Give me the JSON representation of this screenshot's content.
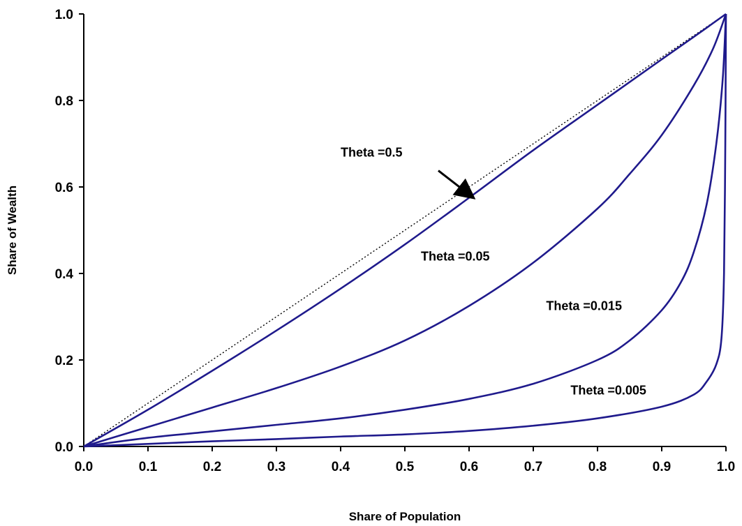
{
  "chart_data": {
    "type": "line",
    "title": "",
    "xlabel": "Share of Population",
    "ylabel": "Share of Wealth",
    "xlim": [
      0.0,
      1.0
    ],
    "ylim": [
      0.0,
      1.0
    ],
    "grid": false,
    "legend": "none",
    "x_ticks": [
      "0.0",
      "0.1",
      "0.2",
      "0.3",
      "0.4",
      "0.5",
      "0.6",
      "0.7",
      "0.8",
      "0.9",
      "1.0"
    ],
    "y_ticks": [
      "0.0",
      "0.2",
      "0.4",
      "0.6",
      "0.8",
      "1.0"
    ],
    "line_color": "#1f1a8c",
    "reference_line": {
      "style": "dotted",
      "x": [
        0.0,
        1.0
      ],
      "y": [
        0.0,
        1.0
      ],
      "color": "#000000"
    },
    "series": [
      {
        "theta": 0.5,
        "x": [
          0,
          0.1,
          0.2,
          0.3,
          0.4,
          0.5,
          0.6,
          0.7,
          0.8,
          0.9,
          0.95,
          1.0
        ],
        "y": [
          0,
          0.085,
          0.175,
          0.268,
          0.365,
          0.467,
          0.575,
          0.685,
          0.79,
          0.895,
          0.947,
          1.0
        ]
      },
      {
        "theta": 0.05,
        "x": [
          0,
          0.1,
          0.2,
          0.3,
          0.4,
          0.5,
          0.6,
          0.7,
          0.8,
          0.85,
          0.9,
          0.95,
          0.98,
          1.0
        ],
        "y": [
          0,
          0.045,
          0.09,
          0.135,
          0.185,
          0.245,
          0.325,
          0.425,
          0.55,
          0.63,
          0.72,
          0.835,
          0.92,
          1.0
        ]
      },
      {
        "theta": 0.015,
        "x": [
          0,
          0.1,
          0.2,
          0.3,
          0.4,
          0.5,
          0.6,
          0.7,
          0.8,
          0.85,
          0.9,
          0.93,
          0.95,
          0.97,
          0.985,
          0.995,
          1.0
        ],
        "y": [
          0,
          0.02,
          0.035,
          0.05,
          0.065,
          0.085,
          0.11,
          0.145,
          0.2,
          0.245,
          0.315,
          0.38,
          0.45,
          0.56,
          0.7,
          0.85,
          1.0
        ]
      },
      {
        "theta": 0.005,
        "x": [
          0,
          0.1,
          0.2,
          0.3,
          0.4,
          0.5,
          0.6,
          0.7,
          0.8,
          0.9,
          0.95,
          0.97,
          0.985,
          0.993,
          0.997,
          0.999,
          1.0
        ],
        "y": [
          0,
          0.006,
          0.012,
          0.017,
          0.023,
          0.028,
          0.036,
          0.048,
          0.065,
          0.092,
          0.12,
          0.15,
          0.19,
          0.25,
          0.4,
          0.7,
          1.0
        ]
      }
    ],
    "annotations": [
      {
        "text": "Theta =0.5",
        "x": 0.4,
        "y": 0.67,
        "arrow_to": [
          0.605,
          0.577
        ]
      },
      {
        "text": "Theta =0.05",
        "x": 0.525,
        "y": 0.43
      },
      {
        "text": "Theta =0.015",
        "x": 0.72,
        "y": 0.315
      },
      {
        "text": "Theta =0.005",
        "x": 0.758,
        "y": 0.12
      }
    ]
  }
}
